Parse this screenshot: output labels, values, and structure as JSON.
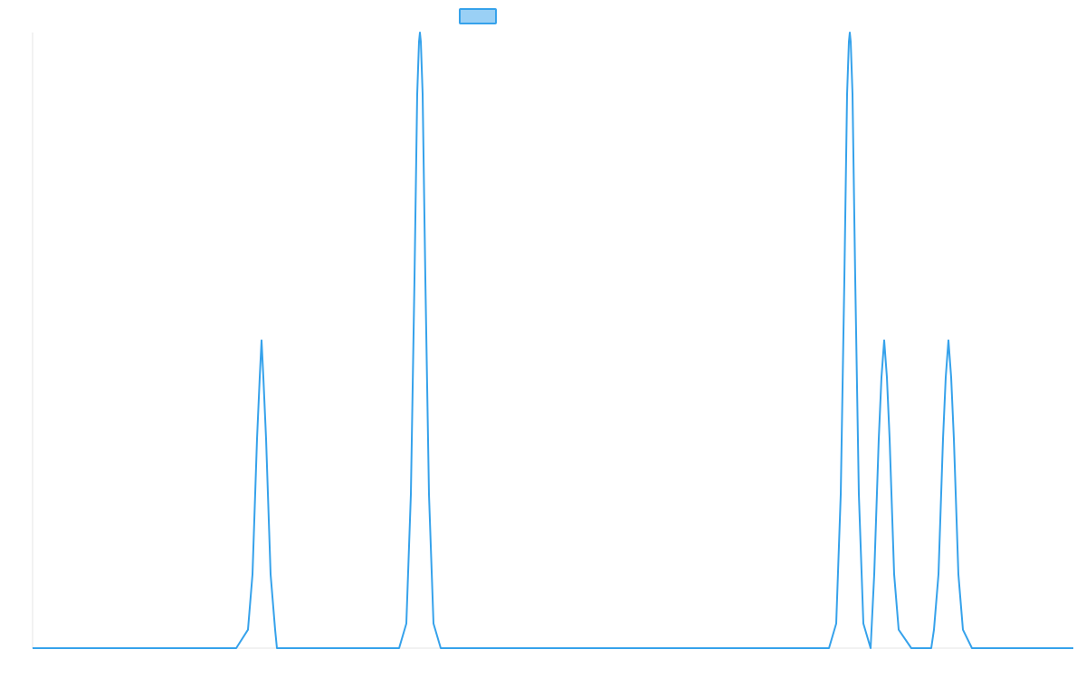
{
  "chart_data": {
    "type": "line",
    "title": "",
    "xlabel": "",
    "ylabel": "",
    "xlim": [
      0,
      1150
    ],
    "ylim": [
      0,
      1
    ],
    "grid": false,
    "legend": {
      "placement": "top-center",
      "shape": "box"
    },
    "series": [
      {
        "name": "",
        "color": "#36a2eb",
        "legend_fill": "#9ad0f5",
        "points": [
          [
            0,
            0
          ],
          [
            225,
            0
          ],
          [
            238,
            0.03
          ],
          [
            243,
            0.12
          ],
          [
            248,
            0.34
          ],
          [
            251,
            0.44
          ],
          [
            253,
            0.5
          ],
          [
            255,
            0.44
          ],
          [
            258,
            0.34
          ],
          [
            263,
            0.12
          ],
          [
            268,
            0.03
          ],
          [
            270,
            0
          ],
          [
            405,
            0
          ],
          [
            413,
            0.04
          ],
          [
            418,
            0.25
          ],
          [
            422,
            0.6
          ],
          [
            425,
            0.9
          ],
          [
            427,
            0.985
          ],
          [
            428,
            1
          ],
          [
            429,
            0.985
          ],
          [
            431,
            0.9
          ],
          [
            434,
            0.6
          ],
          [
            438,
            0.25
          ],
          [
            443,
            0.04
          ],
          [
            451,
            0
          ],
          [
            880,
            0
          ],
          [
            888,
            0.04
          ],
          [
            893,
            0.25
          ],
          [
            897,
            0.6
          ],
          [
            900,
            0.9
          ],
          [
            902,
            0.985
          ],
          [
            903,
            1
          ],
          [
            904,
            0.985
          ],
          [
            906,
            0.9
          ],
          [
            909,
            0.6
          ],
          [
            913,
            0.25
          ],
          [
            918,
            0.04
          ],
          [
            926,
            0
          ],
          [
            930,
            0.12
          ],
          [
            935,
            0.34
          ],
          [
            938,
            0.44
          ],
          [
            940,
            0.48
          ],
          [
            941,
            0.5
          ],
          [
            942,
            0.48
          ],
          [
            944,
            0.44
          ],
          [
            947,
            0.34
          ],
          [
            952,
            0.12
          ],
          [
            957,
            0.03
          ],
          [
            971,
            0
          ],
          [
            993,
            0
          ],
          [
            996,
            0.03
          ],
          [
            1001,
            0.12
          ],
          [
            1006,
            0.34
          ],
          [
            1009,
            0.44
          ],
          [
            1011,
            0.48
          ],
          [
            1012,
            0.5
          ],
          [
            1013,
            0.48
          ],
          [
            1015,
            0.44
          ],
          [
            1018,
            0.34
          ],
          [
            1023,
            0.12
          ],
          [
            1028,
            0.03
          ],
          [
            1038,
            0
          ],
          [
            1150,
            0
          ]
        ]
      }
    ]
  }
}
